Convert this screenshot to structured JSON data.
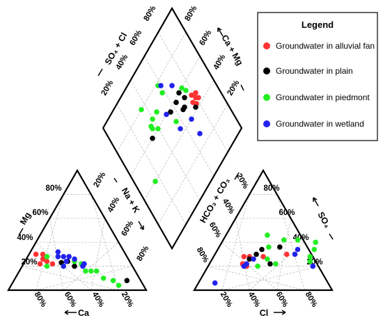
{
  "chart_data": {
    "type": "scatter",
    "subtype": "piper-diagram",
    "colors": {
      "alluvial_fan": "#ff3333",
      "plain": "#000000",
      "piedmont": "#22ee22",
      "wetland": "#2222ee"
    },
    "legend": {
      "title": "Legend",
      "placement": "top-right",
      "entries": [
        {
          "key": "alluvial_fan",
          "label": "Groundwater in alluvial fan"
        },
        {
          "key": "plain",
          "label": "Groundwater in plain"
        },
        {
          "key": "piedmont",
          "label": "Groundwater in piedmont"
        },
        {
          "key": "wetland",
          "label": "Groundwater in wetland"
        }
      ]
    },
    "axes": {
      "cation_mg": "Mg",
      "cation_ca": "Ca",
      "cation_nak": "Na + K",
      "anion_hco3": "HCO₃ + CO₃",
      "anion_so4": "SO₄",
      "anion_cl": "Cl",
      "diamond_so4cl": "SO₄ + Cl",
      "diamond_camg": "Ca + Mg"
    },
    "ticks": [
      "20%",
      "40%",
      "60%",
      "80%"
    ],
    "grid": true,
    "cation_triangle": [
      {
        "group": "alluvial_fan",
        "ca": 65,
        "mg": 30
      },
      {
        "group": "alluvial_fan",
        "ca": 60,
        "mg": 30
      },
      {
        "group": "alluvial_fan",
        "ca": 62,
        "mg": 26
      },
      {
        "group": "alluvial_fan",
        "ca": 60,
        "mg": 24
      },
      {
        "group": "alluvial_fan",
        "ca": 66,
        "mg": 22
      },
      {
        "group": "alluvial_fan",
        "ca": 57,
        "mg": 22
      },
      {
        "group": "plain",
        "ca": 50,
        "mg": 23
      },
      {
        "group": "plain",
        "ca": 45,
        "mg": 24
      },
      {
        "group": "plain",
        "ca": 10,
        "mg": 8
      },
      {
        "group": "plain",
        "ca": 42,
        "mg": 20
      },
      {
        "group": "piedmont",
        "ca": 58,
        "mg": 28
      },
      {
        "group": "piedmont",
        "ca": 62,
        "mg": 20
      },
      {
        "group": "piedmont",
        "ca": 50,
        "mg": 20
      },
      {
        "group": "piedmont",
        "ca": 40,
        "mg": 24
      },
      {
        "group": "piedmont",
        "ca": 36,
        "mg": 22
      },
      {
        "group": "piedmont",
        "ca": 36,
        "mg": 16
      },
      {
        "group": "piedmont",
        "ca": 32,
        "mg": 16
      },
      {
        "group": "piedmont",
        "ca": 28,
        "mg": 16
      },
      {
        "group": "piedmont",
        "ca": 26,
        "mg": 10
      },
      {
        "group": "piedmont",
        "ca": 20,
        "mg": 8
      },
      {
        "group": "piedmont",
        "ca": 18,
        "mg": 4
      },
      {
        "group": "wetland",
        "ca": 48,
        "mg": 32
      },
      {
        "group": "wetland",
        "ca": 50,
        "mg": 28
      },
      {
        "group": "wetland",
        "ca": 46,
        "mg": 28
      },
      {
        "group": "wetland",
        "ca": 46,
        "mg": 24
      },
      {
        "group": "wetland",
        "ca": 42,
        "mg": 28
      },
      {
        "group": "wetland",
        "ca": 39,
        "mg": 26
      },
      {
        "group": "wetland",
        "ca": 50,
        "mg": 20
      },
      {
        "group": "wetland",
        "ca": 36,
        "mg": 20
      },
      {
        "group": "wetland",
        "ca": 34,
        "mg": 22
      }
    ],
    "anion_triangle": [
      {
        "group": "alluvial_fan",
        "cl": 22,
        "so4": 28
      },
      {
        "group": "alluvial_fan",
        "cl": 26,
        "so4": 28
      },
      {
        "group": "alluvial_fan",
        "cl": 28,
        "so4": 20
      },
      {
        "group": "alluvial_fan",
        "cl": 36,
        "so4": 28
      },
      {
        "group": "alluvial_fan",
        "cl": 52,
        "so4": 30
      },
      {
        "group": "alluvial_fan",
        "cl": 24,
        "so4": 22
      },
      {
        "group": "plain",
        "cl": 32,
        "so4": 34
      },
      {
        "group": "plain",
        "cl": 30,
        "so4": 30
      },
      {
        "group": "plain",
        "cl": 27,
        "so4": 26
      },
      {
        "group": "plain",
        "cl": 44,
        "so4": 36
      },
      {
        "group": "plain",
        "cl": 44,
        "so4": 22
      },
      {
        "group": "piedmont",
        "cl": 30,
        "so4": 46
      },
      {
        "group": "piedmont",
        "cl": 44,
        "so4": 42
      },
      {
        "group": "piedmont",
        "cl": 54,
        "so4": 42
      },
      {
        "group": "piedmont",
        "cl": 36,
        "so4": 36
      },
      {
        "group": "piedmont",
        "cl": 40,
        "so4": 26
      },
      {
        "group": "piedmont",
        "cl": 36,
        "so4": 20
      },
      {
        "group": "piedmont",
        "cl": 48,
        "so4": 22
      },
      {
        "group": "piedmont",
        "cl": 68,
        "so4": 40
      },
      {
        "group": "piedmont",
        "cl": 70,
        "so4": 34
      },
      {
        "group": "piedmont",
        "cl": 70,
        "so4": 28
      },
      {
        "group": "piedmont",
        "cl": 72,
        "so4": 24
      },
      {
        "group": "wetland",
        "cl": 30,
        "so4": 26
      },
      {
        "group": "wetland",
        "cl": 27,
        "so4": 22
      },
      {
        "group": "wetland",
        "cl": 26,
        "so4": 20
      },
      {
        "group": "wetland",
        "cl": 58,
        "so4": 34
      },
      {
        "group": "wetland",
        "cl": 58,
        "so4": 30
      },
      {
        "group": "wetland",
        "cl": 76,
        "so4": 20
      },
      {
        "group": "wetland",
        "cl": 12,
        "so4": 6
      }
    ],
    "diamond": [
      {
        "group": "alluvial_fan",
        "so4cl": 44,
        "camg": 82
      },
      {
        "group": "alluvial_fan",
        "so4cl": 46,
        "camg": 80
      },
      {
        "group": "alluvial_fan",
        "so4cl": 43,
        "camg": 78
      },
      {
        "group": "alluvial_fan",
        "so4cl": 46,
        "camg": 76
      },
      {
        "group": "alluvial_fan",
        "so4cl": 48,
        "camg": 82
      },
      {
        "group": "alluvial_fan",
        "so4cl": 50,
        "camg": 78
      },
      {
        "group": "plain",
        "so4cl": 60,
        "camg": 70
      },
      {
        "group": "plain",
        "so4cl": 54,
        "camg": 72
      },
      {
        "group": "plain",
        "so4cl": 42,
        "camg": 76
      },
      {
        "group": "plain",
        "so4cl": 50,
        "camg": 68
      },
      {
        "group": "plain",
        "so4cl": 50,
        "camg": 66
      },
      {
        "group": "plain",
        "so4cl": 58,
        "camg": 64
      },
      {
        "group": "plain",
        "so4cl": 58,
        "camg": 56
      },
      {
        "group": "plain",
        "so4cl": 60,
        "camg": 32
      },
      {
        "group": "piedmont",
        "so4cl": 72,
        "camg": 58
      },
      {
        "group": "piedmont",
        "so4cl": 56,
        "camg": 76
      },
      {
        "group": "piedmont",
        "so4cl": 60,
        "camg": 74
      },
      {
        "group": "piedmont",
        "so4cl": 68,
        "camg": 46
      },
      {
        "group": "piedmont",
        "so4cl": 68,
        "camg": 40
      },
      {
        "group": "piedmont",
        "so4cl": 66,
        "camg": 36
      },
      {
        "group": "piedmont",
        "so4cl": 64,
        "camg": 36
      },
      {
        "group": "piedmont",
        "so4cl": 80,
        "camg": 36
      },
      {
        "group": "piedmont",
        "so4cl": 50,
        "camg": 56
      },
      {
        "group": "piedmont",
        "so4cl": 60,
        "camg": 40
      },
      {
        "group": "piedmont",
        "so4cl": 40,
        "camg": 16
      },
      {
        "group": "piedmont",
        "so4cl": 78,
        "camg": 58
      },
      {
        "group": "wetland",
        "so4cl": 68,
        "camg": 68
      },
      {
        "group": "wetland",
        "so4cl": 76,
        "camg": 60
      },
      {
        "group": "wetland",
        "so4cl": 60,
        "camg": 52
      },
      {
        "group": "wetland",
        "so4cl": 44,
        "camg": 56
      },
      {
        "group": "wetland",
        "so4cl": 40,
        "camg": 68
      },
      {
        "group": "wetland",
        "so4cl": 28,
        "camg": 68
      }
    ]
  }
}
